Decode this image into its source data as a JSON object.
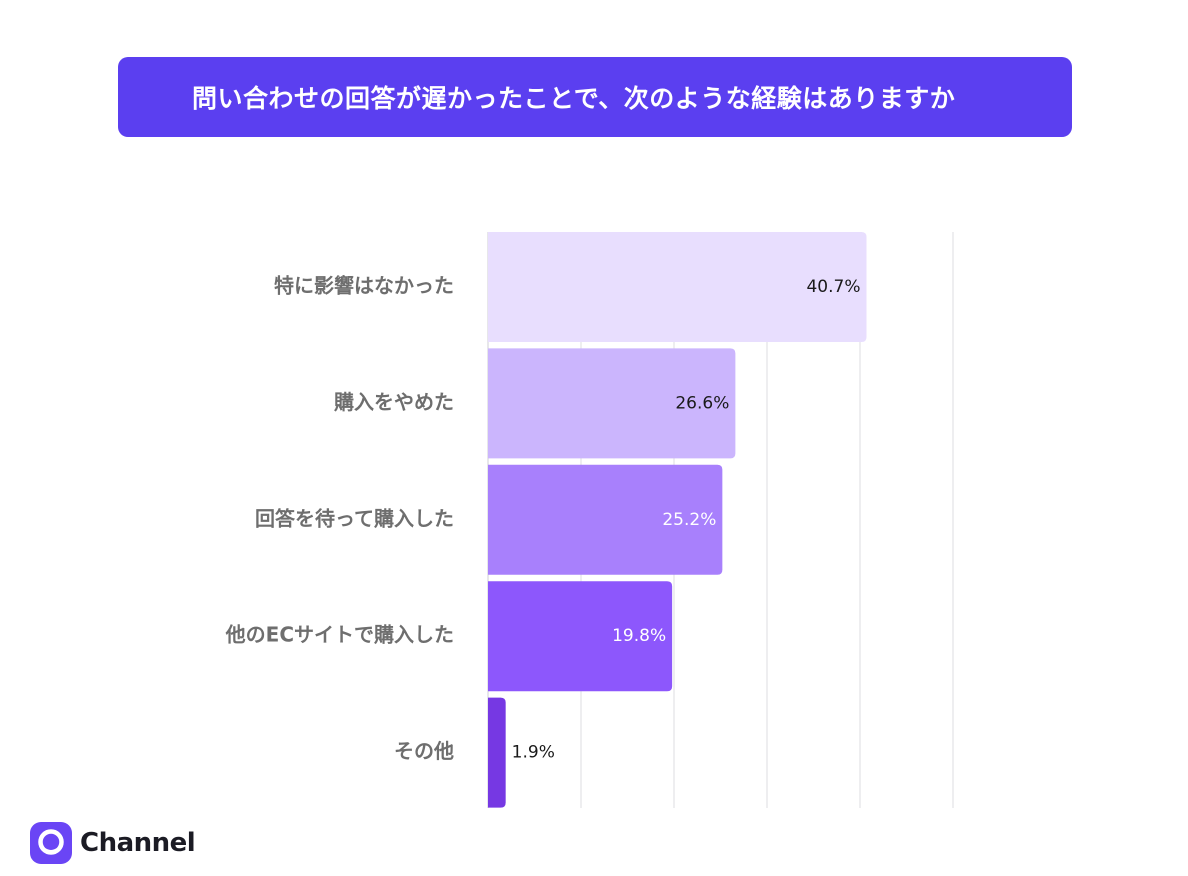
{
  "title": "問い合わせの回答が遅かったことで、次のような経験はありますか",
  "chart_data": {
    "type": "bar",
    "orientation": "horizontal",
    "title": "問い合わせの回答が遅かったことで、次のような経験はありますか",
    "categories": [
      "特に影響はなかった",
      "購入をやめた",
      "回答を待って購入した",
      "他のECサイトで購入した",
      "その他"
    ],
    "values": [
      40.7,
      26.6,
      25.2,
      19.8,
      1.9
    ],
    "data_labels": [
      "40.7%",
      "26.6%",
      "25.2%",
      "19.8%",
      "1.9%"
    ],
    "bar_colors": [
      "#e8defe",
      "#cbb5fd",
      "#a880fc",
      "#8d57fc",
      "#7638e3"
    ],
    "label_colors": [
      "#1a1a1a",
      "#1a1a1a",
      "#ffffff",
      "#ffffff",
      "#1a1a1a"
    ],
    "xlim": [
      0,
      50
    ],
    "gridlines": [
      0,
      10,
      20,
      30,
      40,
      50
    ],
    "grid": true,
    "xlabel": "",
    "ylabel": ""
  },
  "brand": {
    "name": "Channel",
    "accent": "#5b3ff0"
  }
}
